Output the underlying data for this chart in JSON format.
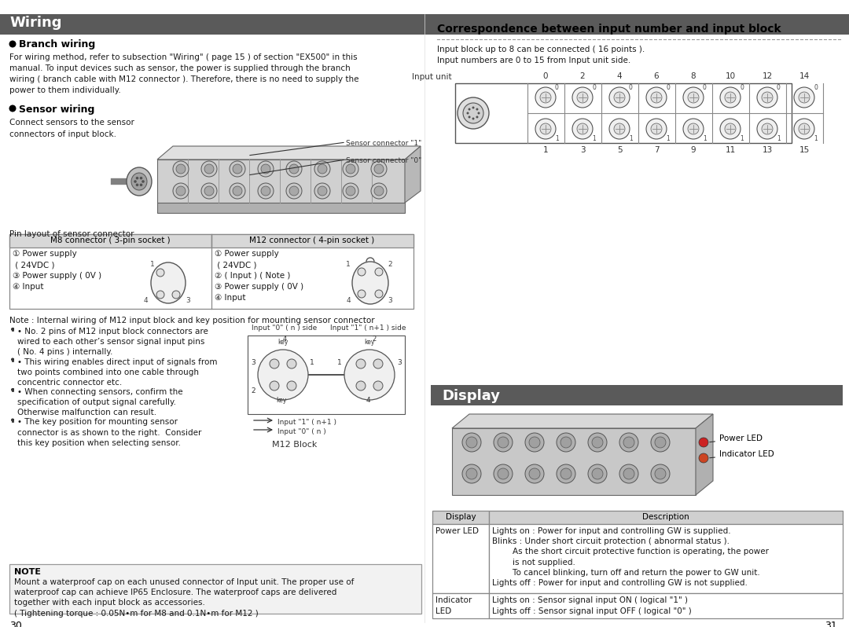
{
  "page_bg": "#ffffff",
  "header_bg": "#5a5a5a",
  "header_text_color": "#ffffff",
  "wiring_header": "Wiring",
  "display_header": "Display",
  "branch_wiring_title": "Branch wiring",
  "branch_wiring_text": "For wiring method, refer to subsection \"Wiring\" ( page 15 ) of section \"EX500\" in this\nmanual. To input devices such as sensor, the power is supplied through the branch\nwiring ( branch cable with M12 connector ). Therefore, there is no need to supply the\npower to them individually.",
  "sensor_wiring_title": "Sensor wiring",
  "sensor_wiring_text": "Connect sensors to the sensor\nconnectors of input block.",
  "sensor_connector_1": "Sensor connector \"1\"",
  "sensor_connector_0": "Sensor connector \"0\"",
  "pin_layout_title": "Pin layout of sensor connector",
  "m8_header": "M8 connector ( 3-pin socket )",
  "m12_header": "M12 connector ( 4-pin socket )",
  "m8_pin_text": "① Power supply\n ( 24VDC )\n③ Power supply ( 0V )\n④ Input",
  "m12_pin_text": "① Power supply\n ( 24VDC )\n② ( Input ) ( Note )\n③ Power supply ( 0V )\n④ Input",
  "note_title": "NOTE",
  "note_text": "Mount a waterproof cap on each unused connector of Input unit. The proper use of\nwaterproof cap can achieve IP65 Enclosure. The waterproof caps are delivered\ntogether with each input block as accessories.\n( Tightening torque : 0.05N•m for M8 and 0.1N•m for M12 )",
  "internal_wiring_note": "Note : Internal wiring of M12 input block and key position for mounting sensor connector",
  "bullet_points": [
    "No. 2 pins of M12 input block connectors are\nwired to each other’s sensor signal input pins\n( No. 4 pins ) internally.",
    "This wiring enables direct input of signals from\ntwo points combined into one cable through\nconcentric connector etc.",
    "When connecting sensors, confirm the\nspecification of output signal carefully.\nOtherwise malfunction can result.",
    "The key position for mounting sensor\nconnector is as shown to the right.  Consider\nthis key position when selecting sensor."
  ],
  "correspondence_title": "Correspondence between input number and input block",
  "correspondence_text1": "Input block up to 8 can be connected ( 16 points ).",
  "correspondence_text2": "Input numbers are 0 to 15 from Input unit side.",
  "input_unit_label": "Input unit",
  "top_numbers": [
    "0",
    "2",
    "4",
    "6",
    "8",
    "10",
    "12",
    "14"
  ],
  "bottom_numbers": [
    "1",
    "3",
    "5",
    "7",
    "9",
    "11",
    "13",
    "15"
  ],
  "display_power_led": "Power LED",
  "display_indicator_led": "Indicator LED",
  "display_table_headers": [
    "Display",
    "Description"
  ],
  "display_table_rows": [
    [
      "Power LED",
      "Lights on : Power for input and controlling GW is supplied.\nBlinks : Under short circuit protection ( abnormal status ).\n        As the short circuit protective function is operating, the power\n        is not supplied.\n        To cancel blinking, turn off and return the power to GW unit.\nLights off : Power for input and controlling GW is not supplied."
    ],
    [
      "Indicator\nLED",
      "Lights on : Sensor signal input ON ( logical \"1\" )\nLights off : Sensor signal input OFF ( logical \"0\" )"
    ]
  ],
  "m12_block_label": "M12 Block"
}
